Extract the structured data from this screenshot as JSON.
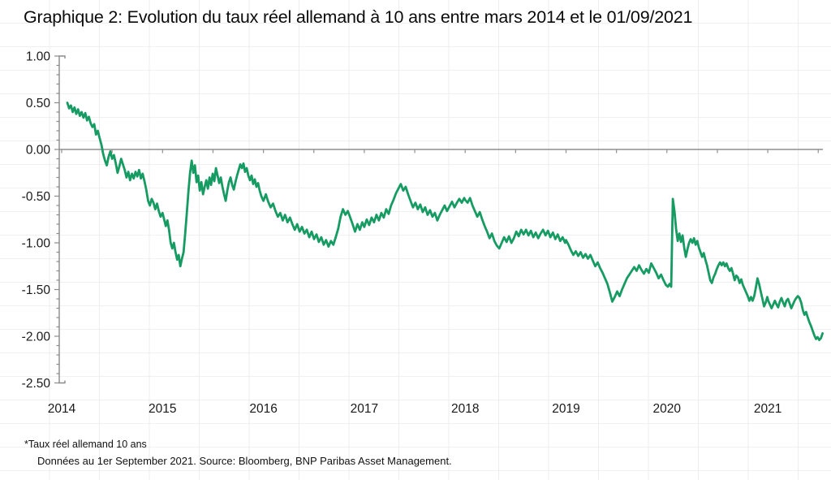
{
  "header": {
    "title": "Graphique 2: Evolution du taux réel allemand à 10 ans entre mars 2014 et le 01/09/2021"
  },
  "footer": {
    "legend_note": "*Taux réel allemand 10 ans",
    "source_note": "Données au 1er September 2021. Source: Bloomberg, BNP Paribas Asset Management."
  },
  "colors": {
    "line": "#169b62",
    "axis": "#8a8a8a",
    "zero_line": "#8f8f8f",
    "label": "#1a1a1a"
  },
  "chart_data": {
    "type": "line",
    "title": "Graphique 2: Evolution du taux réel allemand à 10 ans entre mars 2014 et le 01/09/2021",
    "xlabel": "",
    "ylabel": "",
    "ylim": [
      -2.5,
      1.0
    ],
    "grid": false,
    "legend_position": "none",
    "y_tick_labels": [
      "1.00",
      "0.50",
      "0.00",
      "-0.50",
      "-1.00",
      "-1.50",
      "-2.00",
      "-2.50"
    ],
    "y_tick_values": [
      1.0,
      0.5,
      0.0,
      -0.5,
      -1.0,
      -1.5,
      -2.0,
      -2.5
    ],
    "x_tick_labels": [
      "2014",
      "2015",
      "2016",
      "2017",
      "2018",
      "2019",
      "2020",
      "2021"
    ],
    "x_tick_values": [
      2014,
      2015,
      2016,
      2017,
      2018,
      2019,
      2020,
      2021
    ],
    "series": [
      {
        "name": "Taux réel allemand 10 ans",
        "color": "#169b62",
        "segments": [
          {
            "from": 2014.056,
            "to": 2014.981,
            "values": [
              0.5,
              0.44,
              0.47,
              0.4,
              0.45,
              0.38,
              0.43,
              0.36,
              0.4,
              0.34,
              0.39,
              0.31,
              0.35,
              0.28,
              0.24,
              0.27,
              0.16,
              0.2,
              0.12,
              0.05,
              -0.05,
              -0.12,
              -0.17,
              -0.08,
              -0.02,
              -0.1,
              -0.06,
              -0.15,
              -0.25,
              -0.18,
              -0.1,
              -0.16,
              -0.22,
              -0.3,
              -0.24,
              -0.33,
              -0.26,
              -0.31,
              -0.24,
              -0.29,
              -0.22,
              -0.31,
              -0.26,
              -0.34,
              -0.43,
              -0.55,
              -0.6,
              -0.53,
              -0.57,
              -0.64,
              -0.58,
              -0.66,
              -0.72
            ]
          },
          {
            "from": 2015.0,
            "to": 2015.979,
            "values": [
              -0.68,
              -0.75,
              -0.82,
              -0.76,
              -0.86,
              -1.0,
              -1.06,
              -1.0,
              -1.1,
              -1.18,
              -1.13,
              -1.25,
              -1.17,
              -1.1,
              -0.9,
              -0.68,
              -0.45,
              -0.25,
              -0.12,
              -0.25,
              -0.17,
              -0.35,
              -0.28,
              -0.44,
              -0.35,
              -0.48,
              -0.4,
              -0.33,
              -0.42,
              -0.3,
              -0.38,
              -0.26,
              -0.34,
              -0.2,
              -0.28,
              -0.36,
              -0.3,
              -0.4,
              -0.48,
              -0.55,
              -0.44,
              -0.35,
              -0.3,
              -0.38,
              -0.43,
              -0.35,
              -0.28,
              -0.22,
              -0.16,
              -0.2,
              -0.15,
              -0.24,
              -0.2,
              -0.28,
              -0.33,
              -0.28,
              -0.37,
              -0.32,
              -0.4,
              -0.36,
              -0.44,
              -0.5
            ]
          },
          {
            "from": 2016.0,
            "to": 2016.98,
            "values": [
              -0.55,
              -0.48,
              -0.56,
              -0.62,
              -0.58,
              -0.66,
              -0.72,
              -0.68,
              -0.76,
              -0.7,
              -0.78,
              -0.73,
              -0.8,
              -0.86,
              -0.8,
              -0.88,
              -0.83,
              -0.9,
              -0.86,
              -0.94,
              -0.88,
              -0.96,
              -0.91,
              -0.99,
              -0.94,
              -1.02,
              -0.97,
              -1.04,
              -0.98,
              -1.02,
              -0.94,
              -0.85,
              -0.72,
              -0.64,
              -0.7,
              -0.66,
              -0.73,
              -0.8,
              -0.88,
              -0.8,
              -0.86,
              -0.78
            ]
          },
          {
            "from": 2017.0,
            "to": 2017.99,
            "values": [
              -0.83,
              -0.75,
              -0.81,
              -0.73,
              -0.78,
              -0.7,
              -0.76,
              -0.68,
              -0.73,
              -0.64,
              -0.69,
              -0.6,
              -0.54,
              -0.47,
              -0.42,
              -0.37,
              -0.44,
              -0.4,
              -0.48,
              -0.55,
              -0.62,
              -0.57,
              -0.64,
              -0.59,
              -0.67,
              -0.62,
              -0.7,
              -0.65,
              -0.72,
              -0.68,
              -0.76,
              -0.7,
              -0.65,
              -0.6,
              -0.66,
              -0.61,
              -0.56,
              -0.62,
              -0.57,
              -0.53,
              -0.57,
              -0.52
            ]
          },
          {
            "from": 2018.0,
            "to": 2018.99,
            "values": [
              -0.54,
              -0.57,
              -0.52,
              -0.6,
              -0.66,
              -0.72,
              -0.67,
              -0.75,
              -0.82,
              -0.88,
              -0.95,
              -0.9,
              -0.98,
              -1.03,
              -1.06,
              -1.0,
              -0.94,
              -0.99,
              -0.93,
              -1.0,
              -0.95,
              -0.88,
              -0.93,
              -0.86,
              -0.91,
              -0.86,
              -0.92,
              -0.87,
              -0.94,
              -0.89,
              -0.95,
              -0.9,
              -0.86,
              -0.92,
              -0.87,
              -0.94,
              -0.89,
              -0.96,
              -0.91,
              -0.98,
              -0.94,
              -1.0
            ]
          },
          {
            "from": 2019.0,
            "to": 2019.99,
            "values": [
              -0.97,
              -1.02,
              -1.08,
              -1.13,
              -1.09,
              -1.14,
              -1.1,
              -1.16,
              -1.12,
              -1.17,
              -1.13,
              -1.19,
              -1.25,
              -1.21,
              -1.27,
              -1.32,
              -1.38,
              -1.44,
              -1.53,
              -1.63,
              -1.58,
              -1.52,
              -1.57,
              -1.5,
              -1.44,
              -1.38,
              -1.34,
              -1.3,
              -1.26,
              -1.3,
              -1.24,
              -1.29,
              -1.33,
              -1.28,
              -1.32,
              -1.22,
              -1.27,
              -1.32,
              -1.38,
              -1.34,
              -1.4,
              -1.45
            ]
          },
          {
            "from": 2020.01,
            "to": 2020.995,
            "values": [
              -1.47,
              -1.44,
              -1.47,
              -0.53,
              -0.66,
              -0.85,
              -0.98,
              -0.9,
              -0.99,
              -0.92,
              -1.05,
              -1.15,
              -1.07,
              -1.0,
              -0.96,
              -1.0,
              -0.95,
              -1.02,
              -0.98,
              -1.05,
              -1.1,
              -1.15,
              -1.11,
              -1.18,
              -1.24,
              -1.32,
              -1.4,
              -1.43,
              -1.37,
              -1.33,
              -1.28,
              -1.24,
              -1.21,
              -1.24,
              -1.21,
              -1.25,
              -1.22,
              -1.27,
              -1.3,
              -1.27,
              -1.33,
              -1.4,
              -1.35,
              -1.37,
              -1.43,
              -1.39,
              -1.45,
              -1.49,
              -1.53,
              -1.57,
              -1.62,
              -1.58,
              -1.62,
              -1.57,
              -1.48,
              -1.38,
              -1.44,
              -1.52,
              -1.6,
              -1.68,
              -1.64,
              -1.58
            ]
          },
          {
            "from": 2021.005,
            "to": 2021.543,
            "values": [
              -1.62,
              -1.66,
              -1.7,
              -1.66,
              -1.62,
              -1.66,
              -1.69,
              -1.63,
              -1.59,
              -1.64,
              -1.68,
              -1.62,
              -1.6,
              -1.65,
              -1.7,
              -1.66,
              -1.62,
              -1.59,
              -1.57,
              -1.59,
              -1.64,
              -1.72,
              -1.77,
              -1.74,
              -1.8,
              -1.85,
              -1.89,
              -1.94,
              -1.99,
              -2.03,
              -2.01,
              -2.04,
              -2.02,
              -1.97
            ]
          }
        ]
      }
    ]
  }
}
